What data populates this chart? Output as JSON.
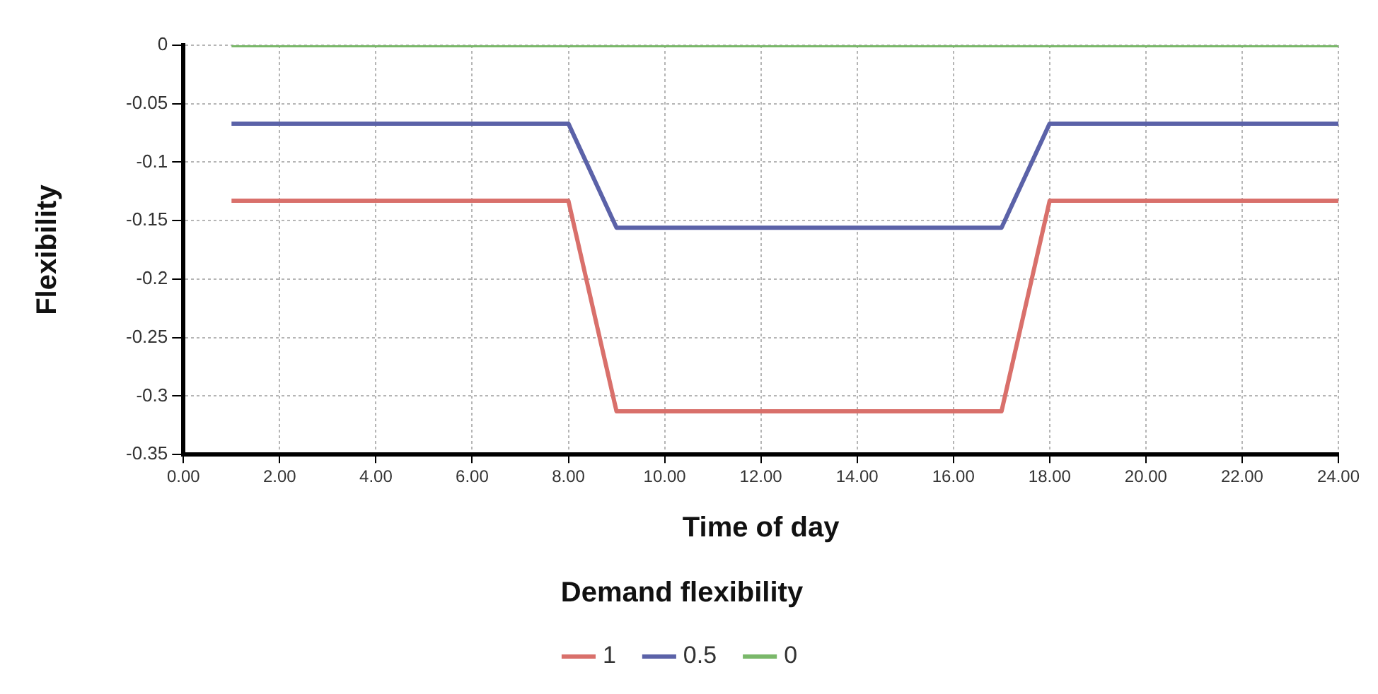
{
  "chart_data": {
    "type": "line",
    "xlabel": "Time of day",
    "ylabel": "Flexibility",
    "legend_title": "Demand flexibility",
    "x": [
      1,
      2,
      3,
      4,
      5,
      6,
      7,
      8,
      9,
      10,
      11,
      12,
      13,
      14,
      15,
      16,
      17,
      18,
      19,
      20,
      21,
      22,
      23,
      24
    ],
    "series": [
      {
        "name": "1",
        "color": "#d9706b",
        "values": [
          -0.133,
          -0.133,
          -0.133,
          -0.133,
          -0.133,
          -0.133,
          -0.133,
          -0.133,
          -0.313,
          -0.313,
          -0.313,
          -0.313,
          -0.313,
          -0.313,
          -0.313,
          -0.313,
          -0.313,
          -0.133,
          -0.133,
          -0.133,
          -0.133,
          -0.133,
          -0.133,
          -0.133
        ]
      },
      {
        "name": "0.5",
        "color": "#5b62a8",
        "values": [
          -0.067,
          -0.067,
          -0.067,
          -0.067,
          -0.067,
          -0.067,
          -0.067,
          -0.067,
          -0.156,
          -0.156,
          -0.156,
          -0.156,
          -0.156,
          -0.156,
          -0.156,
          -0.156,
          -0.156,
          -0.067,
          -0.067,
          -0.067,
          -0.067,
          -0.067,
          -0.067,
          -0.067
        ]
      },
      {
        "name": "0",
        "color": "#7ab86a",
        "values": [
          0,
          0,
          0,
          0,
          0,
          0,
          0,
          0,
          0,
          0,
          0,
          0,
          0,
          0,
          0,
          0,
          0,
          0,
          0,
          0,
          0,
          0,
          0,
          0
        ]
      }
    ],
    "xlim": [
      0,
      24
    ],
    "xticks": [
      {
        "value": 0,
        "label": "0.00"
      },
      {
        "value": 2,
        "label": "2.00"
      },
      {
        "value": 4,
        "label": "4.00"
      },
      {
        "value": 6,
        "label": "6.00"
      },
      {
        "value": 8,
        "label": "8.00"
      },
      {
        "value": 10,
        "label": "10.00"
      },
      {
        "value": 12,
        "label": "12.00"
      },
      {
        "value": 14,
        "label": "14.00"
      },
      {
        "value": 16,
        "label": "16.00"
      },
      {
        "value": 18,
        "label": "18.00"
      },
      {
        "value": 20,
        "label": "20.00"
      },
      {
        "value": 22,
        "label": "22.00"
      },
      {
        "value": 24,
        "label": "24.00"
      }
    ],
    "ylim": [
      -0.35,
      0
    ],
    "yticks": [
      0,
      -0.05,
      -0.1,
      -0.15,
      -0.2,
      -0.25,
      -0.3,
      -0.35
    ],
    "grid": true,
    "legend": "bottom",
    "marker": "none",
    "line_style": "solid"
  }
}
